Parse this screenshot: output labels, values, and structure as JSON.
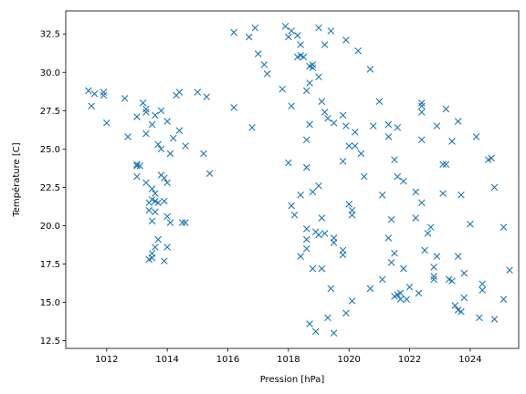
{
  "chart_data": {
    "type": "scatter",
    "xlabel": "Pression [hPa]",
    "ylabel": "Température [C]",
    "xlim": [
      1010.65,
      1025.6
    ],
    "ylim": [
      12.0,
      34.0
    ],
    "xticks": [
      {
        "value": 1012,
        "label": "1012"
      },
      {
        "value": 1014,
        "label": "1014"
      },
      {
        "value": 1016,
        "label": "1016"
      },
      {
        "value": 1018,
        "label": "1018"
      },
      {
        "value": 1020,
        "label": "1020"
      },
      {
        "value": 1022,
        "label": "1022"
      },
      {
        "value": 1024,
        "label": "1024"
      }
    ],
    "yticks": [
      {
        "value": 12.5,
        "label": "12.5"
      },
      {
        "value": 15.0,
        "label": "15.0"
      },
      {
        "value": 17.5,
        "label": "17.5"
      },
      {
        "value": 20.0,
        "label": "20.0"
      },
      {
        "value": 22.5,
        "label": "22.5"
      },
      {
        "value": 25.0,
        "label": "25.0"
      },
      {
        "value": 27.5,
        "label": "27.5"
      },
      {
        "value": 30.0,
        "label": "30.0"
      },
      {
        "value": 32.5,
        "label": "32.5"
      }
    ],
    "marker": "x",
    "color": "#1f77b4",
    "grid": false,
    "legend": false,
    "points": [
      [
        1011.4,
        28.8
      ],
      [
        1011.6,
        28.6
      ],
      [
        1011.9,
        28.7
      ],
      [
        1011.9,
        28.5
      ],
      [
        1011.5,
        27.8
      ],
      [
        1012.0,
        26.7
      ],
      [
        1012.6,
        28.3
      ],
      [
        1013.2,
        28.0
      ],
      [
        1013.3,
        27.6
      ],
      [
        1013.0,
        27.1
      ],
      [
        1013.3,
        27.4
      ],
      [
        1013.6,
        27.2
      ],
      [
        1013.8,
        27.5
      ],
      [
        1013.5,
        26.6
      ],
      [
        1014.0,
        26.8
      ],
      [
        1013.3,
        26.0
      ],
      [
        1014.3,
        28.5
      ],
      [
        1014.4,
        28.7
      ],
      [
        1015.0,
        28.7
      ],
      [
        1015.3,
        28.4
      ],
      [
        1014.4,
        26.2
      ],
      [
        1014.2,
        25.7
      ],
      [
        1013.8,
        25.0
      ],
      [
        1014.1,
        24.7
      ],
      [
        1014.6,
        25.2
      ],
      [
        1015.2,
        24.7
      ],
      [
        1015.4,
        23.4
      ],
      [
        1012.7,
        25.8
      ],
      [
        1013.7,
        25.3
      ],
      [
        1013.0,
        24.0
      ],
      [
        1013.0,
        23.9
      ],
      [
        1013.1,
        23.9
      ],
      [
        1013.0,
        23.2
      ],
      [
        1013.3,
        22.8
      ],
      [
        1013.8,
        23.3
      ],
      [
        1013.9,
        23.1
      ],
      [
        1014.0,
        22.8
      ],
      [
        1013.5,
        22.4
      ],
      [
        1013.6,
        22.1
      ],
      [
        1013.4,
        21.5
      ],
      [
        1013.5,
        21.7
      ],
      [
        1013.6,
        21.6
      ],
      [
        1013.7,
        21.5
      ],
      [
        1013.9,
        21.6
      ],
      [
        1013.4,
        21.0
      ],
      [
        1013.6,
        20.9
      ],
      [
        1013.5,
        20.3
      ],
      [
        1014.0,
        20.6
      ],
      [
        1014.1,
        20.2
      ],
      [
        1014.5,
        20.2
      ],
      [
        1014.6,
        20.2
      ],
      [
        1013.7,
        19.1
      ],
      [
        1013.6,
        18.6
      ],
      [
        1013.5,
        18.2
      ],
      [
        1014.0,
        18.6
      ],
      [
        1013.4,
        17.8
      ],
      [
        1013.5,
        17.9
      ],
      [
        1013.9,
        17.7
      ],
      [
        1016.2,
        32.6
      ],
      [
        1016.7,
        32.3
      ],
      [
        1016.9,
        32.9
      ],
      [
        1017.0,
        31.2
      ],
      [
        1017.2,
        30.5
      ],
      [
        1017.3,
        29.9
      ],
      [
        1016.2,
        27.7
      ],
      [
        1016.8,
        26.4
      ],
      [
        1017.8,
        28.9
      ],
      [
        1017.9,
        33.0
      ],
      [
        1018.0,
        32.3
      ],
      [
        1018.1,
        32.7
      ],
      [
        1018.3,
        32.4
      ],
      [
        1018.4,
        31.8
      ],
      [
        1018.4,
        31.1
      ],
      [
        1018.3,
        31.0
      ],
      [
        1018.5,
        31.0
      ],
      [
        1018.7,
        30.4
      ],
      [
        1018.8,
        30.5
      ],
      [
        1018.8,
        30.3
      ],
      [
        1018.6,
        28.8
      ],
      [
        1018.7,
        29.3
      ],
      [
        1018.1,
        27.8
      ],
      [
        1018.7,
        26.6
      ],
      [
        1018.6,
        25.6
      ],
      [
        1018.6,
        23.8
      ],
      [
        1018.0,
        24.1
      ],
      [
        1018.8,
        22.2
      ],
      [
        1018.4,
        22.0
      ],
      [
        1019.0,
        32.9
      ],
      [
        1019.4,
        32.7
      ],
      [
        1019.2,
        31.8
      ],
      [
        1019.9,
        32.1
      ],
      [
        1020.3,
        31.4
      ],
      [
        1019.0,
        29.7
      ],
      [
        1019.1,
        28.1
      ],
      [
        1019.3,
        27.0
      ],
      [
        1019.2,
        27.4
      ],
      [
        1019.5,
        26.7
      ],
      [
        1019.8,
        27.2
      ],
      [
        1019.9,
        26.5
      ],
      [
        1020.2,
        26.1
      ],
      [
        1020.0,
        25.2
      ],
      [
        1020.2,
        25.2
      ],
      [
        1020.4,
        24.7
      ],
      [
        1020.5,
        23.2
      ],
      [
        1019.8,
        24.2
      ],
      [
        1020.7,
        30.2
      ],
      [
        1021.0,
        28.1
      ],
      [
        1020.8,
        26.5
      ],
      [
        1021.3,
        26.6
      ],
      [
        1021.3,
        25.8
      ],
      [
        1021.6,
        26.4
      ],
      [
        1021.5,
        24.3
      ],
      [
        1021.6,
        23.2
      ],
      [
        1021.8,
        22.9
      ],
      [
        1021.1,
        22.0
      ],
      [
        1022.2,
        22.2
      ],
      [
        1022.4,
        28.0
      ],
      [
        1022.4,
        27.8
      ],
      [
        1022.4,
        27.4
      ],
      [
        1022.4,
        25.6
      ],
      [
        1022.9,
        26.5
      ],
      [
        1023.2,
        27.6
      ],
      [
        1023.4,
        25.5
      ],
      [
        1023.6,
        26.8
      ],
      [
        1023.1,
        24.0
      ],
      [
        1023.2,
        24.0
      ],
      [
        1023.1,
        22.1
      ],
      [
        1023.7,
        22.0
      ],
      [
        1024.2,
        25.8
      ],
      [
        1024.6,
        24.3
      ],
      [
        1024.7,
        24.4
      ],
      [
        1024.8,
        22.5
      ],
      [
        1018.1,
        21.3
      ],
      [
        1018.2,
        20.7
      ],
      [
        1018.6,
        19.8
      ],
      [
        1018.6,
        19.1
      ],
      [
        1018.9,
        19.6
      ],
      [
        1019.0,
        19.4
      ],
      [
        1019.2,
        19.5
      ],
      [
        1019.1,
        20.5
      ],
      [
        1019.0,
        22.6
      ],
      [
        1020.0,
        21.4
      ],
      [
        1020.1,
        21.0
      ],
      [
        1020.1,
        20.7
      ],
      [
        1019.5,
        19.2
      ],
      [
        1019.5,
        18.9
      ],
      [
        1019.8,
        18.4
      ],
      [
        1019.8,
        18.1
      ],
      [
        1018.4,
        18.0
      ],
      [
        1018.6,
        18.5
      ],
      [
        1018.8,
        17.2
      ],
      [
        1019.1,
        17.2
      ],
      [
        1021.4,
        20.4
      ],
      [
        1021.3,
        19.2
      ],
      [
        1022.2,
        20.5
      ],
      [
        1022.4,
        21.5
      ],
      [
        1022.6,
        19.5
      ],
      [
        1022.7,
        19.9
      ],
      [
        1021.4,
        17.6
      ],
      [
        1021.5,
        18.2
      ],
      [
        1021.8,
        17.2
      ],
      [
        1022.5,
        18.4
      ],
      [
        1022.9,
        18.0
      ],
      [
        1022.8,
        17.3
      ],
      [
        1022.8,
        16.7
      ],
      [
        1022.8,
        16.5
      ],
      [
        1023.3,
        16.5
      ],
      [
        1023.4,
        16.4
      ],
      [
        1023.6,
        18.0
      ],
      [
        1023.8,
        16.9
      ],
      [
        1024.0,
        20.1
      ],
      [
        1021.1,
        16.5
      ],
      [
        1020.7,
        15.9
      ],
      [
        1021.5,
        15.4
      ],
      [
        1021.6,
        15.5
      ],
      [
        1021.7,
        15.6
      ],
      [
        1021.7,
        15.2
      ],
      [
        1021.9,
        15.2
      ],
      [
        1022.0,
        16.0
      ],
      [
        1022.3,
        15.6
      ],
      [
        1023.5,
        14.8
      ],
      [
        1023.6,
        14.5
      ],
      [
        1023.8,
        15.3
      ],
      [
        1023.7,
        14.4
      ],
      [
        1024.4,
        16.2
      ],
      [
        1024.4,
        15.8
      ],
      [
        1025.1,
        19.9
      ],
      [
        1025.3,
        17.1
      ],
      [
        1025.1,
        15.2
      ],
      [
        1024.3,
        14.0
      ],
      [
        1024.8,
        13.9
      ],
      [
        1020.1,
        15.1
      ],
      [
        1019.9,
        14.3
      ],
      [
        1019.4,
        15.9
      ],
      [
        1019.3,
        14.0
      ],
      [
        1018.9,
        13.1
      ],
      [
        1018.7,
        13.6
      ],
      [
        1019.5,
        13.0
      ]
    ]
  }
}
